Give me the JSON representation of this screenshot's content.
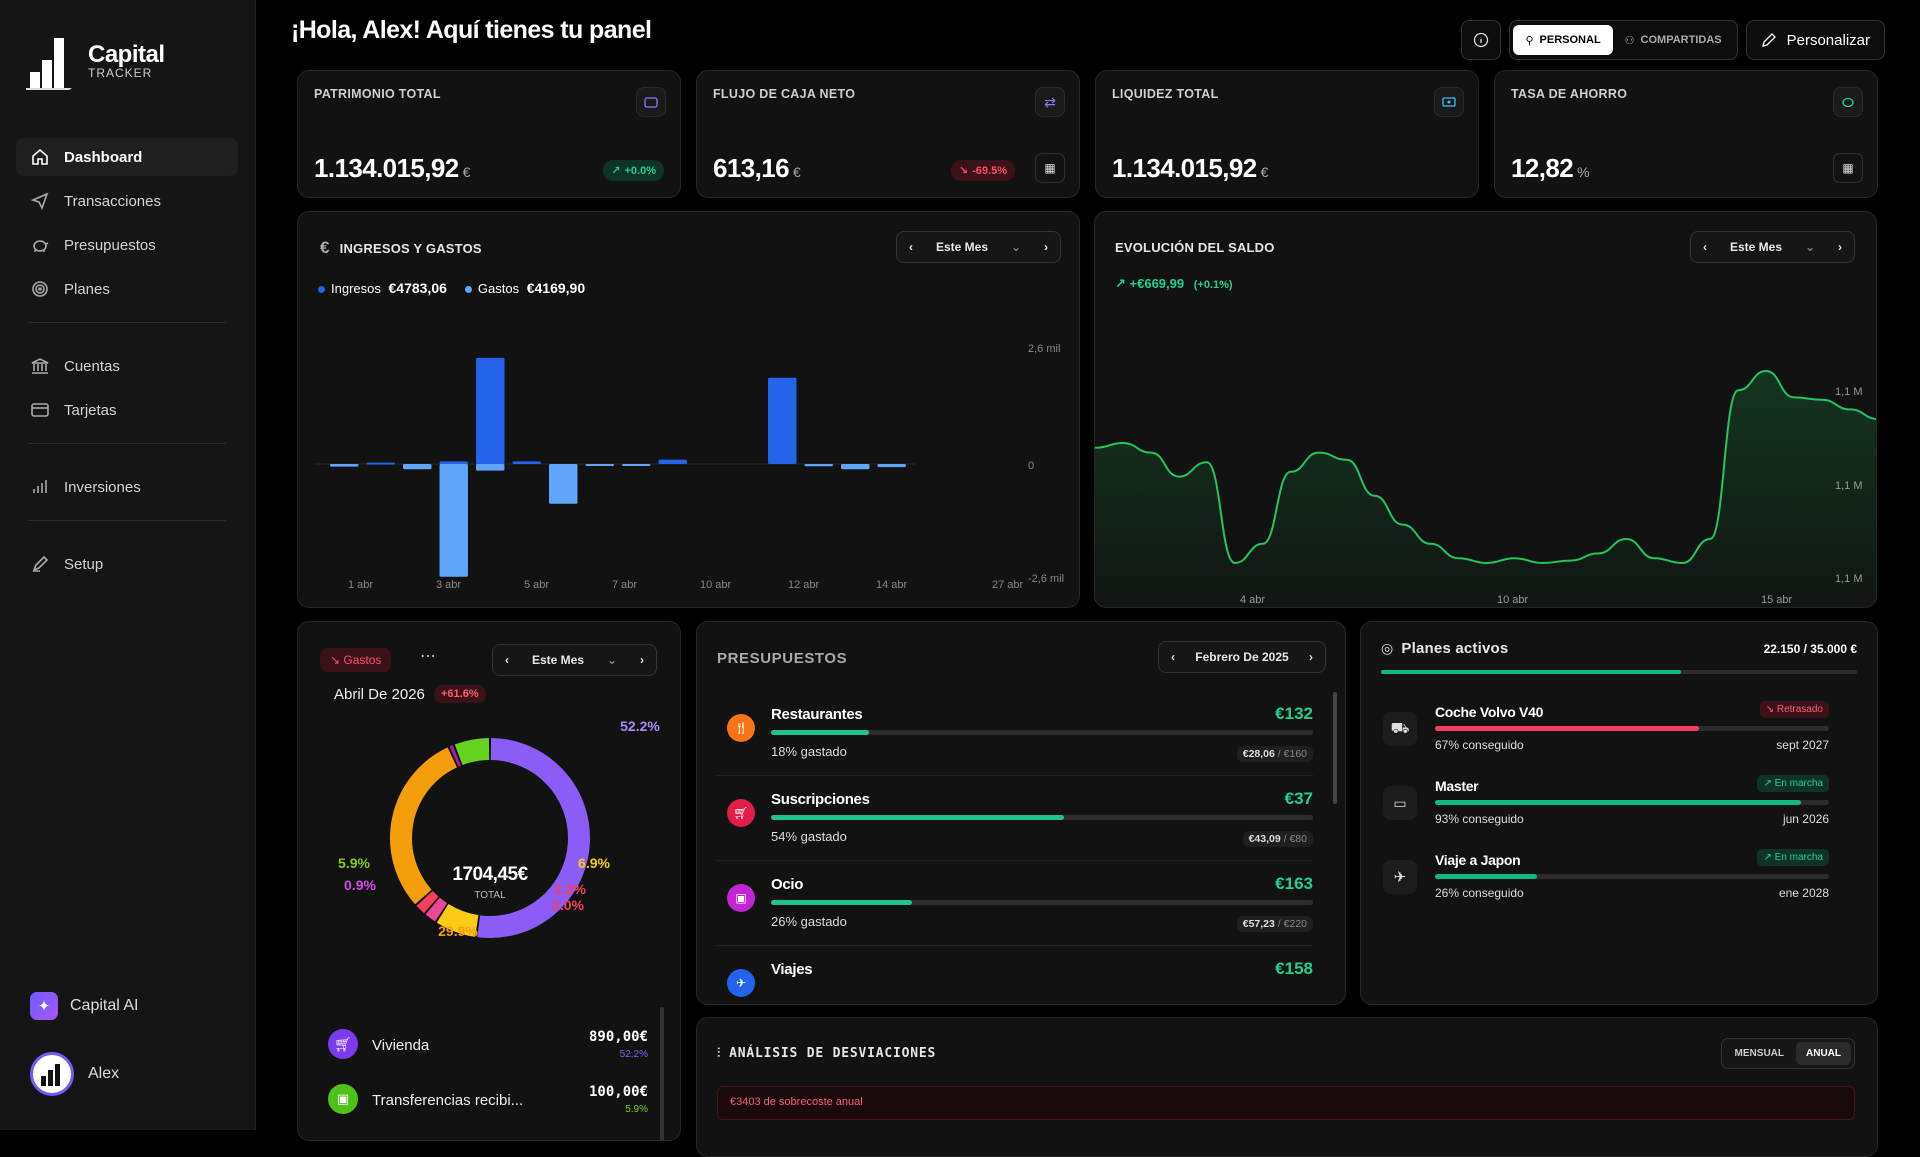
{
  "app": {
    "name": "Capital",
    "sub": "TRACKER"
  },
  "nav": [
    {
      "label": "Dashboard",
      "icon": "home-icon"
    },
    {
      "label": "Transacciones",
      "icon": "send-icon"
    },
    {
      "label": "Presupuestos",
      "icon": "piggy-icon"
    },
    {
      "label": "Planes",
      "icon": "target-icon"
    },
    {
      "label": "Cuentas",
      "icon": "bank-icon"
    },
    {
      "label": "Tarjetas",
      "icon": "card-icon"
    },
    {
      "label": "Inversiones",
      "icon": "bars-icon"
    },
    {
      "label": "Setup",
      "icon": "pen-icon"
    }
  ],
  "sidebar_bottom": {
    "ai": "Capital AI",
    "user": "Alex"
  },
  "header": {
    "title": "¡Hola, Alex! Aquí tienes tu panel",
    "personal": "PERSONAL",
    "shared": "COMPARTIDAS",
    "customize": "Personalizar"
  },
  "kpis": [
    {
      "label": "PATRIMONIO TOTAL",
      "value": "1.134.015,92",
      "unit": "€",
      "badge": "+0.0%",
      "badge_type": "green"
    },
    {
      "label": "FLUJO DE CAJA NETO",
      "value": "613,16",
      "unit": "€",
      "badge": "-69.5%",
      "badge_type": "red"
    },
    {
      "label": "LIQUIDEZ TOTAL",
      "value": "1.134.015,92",
      "unit": "€"
    },
    {
      "label": "TASA DE AHORRO",
      "value": "12,82",
      "unit": "%"
    }
  ],
  "income": {
    "title": "INGRESOS Y GASTOS",
    "period": "Este Mes",
    "legend_income": "Ingresos",
    "income_total": "€4783,06",
    "legend_expense": "Gastos",
    "expense_total": "€4169,90",
    "y_top": "2,6 mil",
    "y_zero": "0",
    "y_bottom": "-2,6 mil",
    "x_labels": [
      "1 abr",
      "3 abr",
      "5 abr",
      "7 abr",
      "10 abr",
      "12 abr",
      "14 abr",
      "27 abr"
    ]
  },
  "chart_data": [
    {
      "type": "bar",
      "title": "INGRESOS Y GASTOS",
      "ylim": [
        -2600,
        2600
      ],
      "x": [
        "1 abr",
        "2 abr",
        "3 abr",
        "4 abr",
        "5 abr",
        "6 abr",
        "7 abr",
        "8 abr",
        "10 abr",
        "11 abr",
        "12 abr",
        "13 abr",
        "14 abr",
        "25 abr",
        "26 abr",
        "27 abr"
      ],
      "series": [
        {
          "name": "Ingresos",
          "values": [
            0,
            30,
            0,
            60,
            2400,
            60,
            0,
            0,
            0,
            100,
            0,
            0,
            1950,
            0,
            0,
            0
          ]
        },
        {
          "name": "Gastos",
          "values": [
            -60,
            0,
            -120,
            -2550,
            -150,
            0,
            -900,
            -20,
            -40,
            0,
            0,
            0,
            0,
            -50,
            -120,
            -70
          ]
        }
      ]
    },
    {
      "type": "line",
      "title": "EVOLUCIÓN DEL SALDO",
      "x_ticks": [
        "4 abr",
        "10 abr",
        "15 abr"
      ],
      "y_ticks": [
        "1,1 M",
        "1,1 M",
        "1,1 M"
      ],
      "series": [
        {
          "values": [
            0.58,
            0.6,
            0.56,
            0.46,
            0.52,
            0.1,
            0.18,
            0.48,
            0.56,
            0.53,
            0.38,
            0.26,
            0.18,
            0.12,
            0.1,
            0.12,
            0.1,
            0.11,
            0.14,
            0.2,
            0.12,
            0.1,
            0.2,
            0.82,
            0.9,
            0.79,
            0.78,
            0.74,
            0.7
          ]
        }
      ]
    },
    {
      "type": "pie",
      "title": "Gastos",
      "total": "1704,45€",
      "slices": [
        {
          "label": "52.2%",
          "value": 52.2,
          "color": "#8b5cf6"
        },
        {
          "label": "6.9%",
          "value": 6.9,
          "color": "#facc15"
        },
        {
          "label": "2.2%",
          "value": 2.2,
          "color": "#ec4899"
        },
        {
          "label": "2.0%",
          "value": 2.0,
          "color": "#f43f5e"
        },
        {
          "label": "29.9%",
          "value": 29.9,
          "color": "#f59e0b"
        },
        {
          "label": "0.9%",
          "value": 0.9,
          "color": "#a21caf"
        },
        {
          "label": "5.9%",
          "value": 5.9,
          "color": "#65d31f"
        }
      ]
    }
  ],
  "balance": {
    "title": "EVOLUCIÓN DEL SALDO",
    "period": "Este Mes",
    "change": "+€669,99",
    "change_pct": "(+0.1%)",
    "y_labels": [
      "1,1 M",
      "1,1 M",
      "1,1 M"
    ],
    "x_labels": [
      "4 abr",
      "10 abr",
      "15 abr"
    ]
  },
  "donut": {
    "tag": "Gastos",
    "period": "Este Mes",
    "month": "Abril De 2026",
    "month_badge": "+61.6%",
    "total": "1704,45€",
    "total_label": "TOTAL",
    "categories": [
      {
        "name": "Vivienda",
        "amount": "890,00€",
        "pct": "52.2%",
        "color": "#8b5cf6"
      },
      {
        "name": "Transferencias recibi...",
        "amount": "100,00€",
        "pct": "5.9%",
        "color": "#65d31f"
      }
    ]
  },
  "budgets": {
    "title": "PRESUPUESTOS",
    "period": "Febrero De 2025",
    "items": [
      {
        "name": "Restaurantes",
        "amount": "€132",
        "pct": "18% gastado",
        "spent": "€28,06",
        "limit": "€160",
        "fill": 0.18,
        "color": "#f97316"
      },
      {
        "name": "Suscripciones",
        "amount": "€37",
        "pct": "54% gastado",
        "spent": "€43,09",
        "limit": "€80",
        "fill": 0.54,
        "color": "#e11d48"
      },
      {
        "name": "Ocio",
        "amount": "€163",
        "pct": "26% gastado",
        "spent": "€57,23",
        "limit": "€220",
        "fill": 0.26,
        "color": "#c026d3"
      },
      {
        "name": "Viajes",
        "amount": "€158",
        "color": "#2563eb"
      }
    ]
  },
  "plans": {
    "title": "Planes activos",
    "total": "22.150 / 35.000 €",
    "overall_fill": 0.63,
    "items": [
      {
        "name": "Coche Volvo V40",
        "status": "Retrasado",
        "sub": "67% conseguido",
        "date": "sept 2027",
        "fill": 0.67,
        "color": "#f43f5e"
      },
      {
        "name": "Master",
        "status": "En marcha",
        "sub": "93% conseguido",
        "date": "jun 2026",
        "fill": 0.93,
        "color": "#10b981"
      },
      {
        "name": "Viaje a Japon",
        "status": "En marcha",
        "sub": "26% conseguido",
        "date": "ene 2028",
        "fill": 0.26,
        "color": "#10b981"
      }
    ]
  },
  "deviations": {
    "title": "ANÁLISIS DE DESVIACIONES",
    "monthly": "MENSUAL",
    "annual": "ANUAL",
    "alert": "€3403 de sobrecoste anual"
  }
}
